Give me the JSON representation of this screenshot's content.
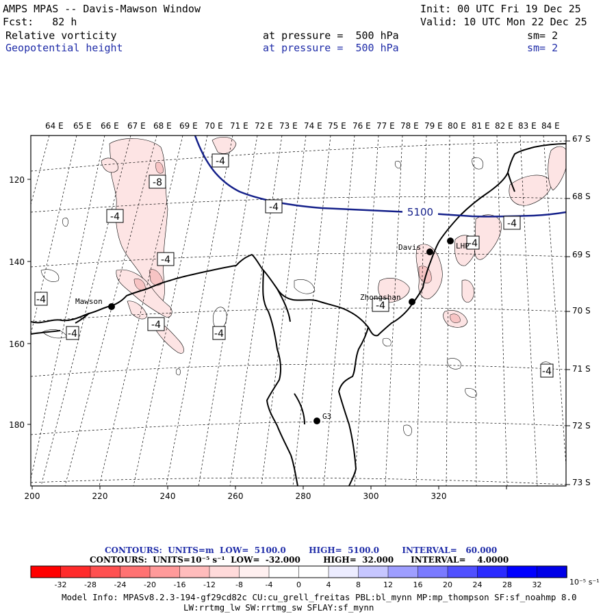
{
  "header": {
    "title": "AMPS MPAS -- Davis-Mawson Window",
    "init": "Init: 00 UTC Fri 19 Dec 25",
    "fcst": "Fcst:   82 h",
    "valid": "Valid: 10 UTC Mon 22 Dec 25",
    "field1": "Relative vorticity",
    "field1_level": "at pressure =  500 hPa",
    "field1_sm": "sm= 2",
    "field2": "Geopotential height",
    "field2_level": "at pressure =  500 hPa",
    "field2_sm": "sm= 2"
  },
  "map": {
    "top_lon_labels": [
      "64 E",
      "65 E",
      "66 E",
      "67 E",
      "68 E",
      "69 E",
      "70 E",
      "71 E",
      "72 E",
      "73 E",
      "74 E",
      "75 E",
      "76 E",
      "77 E",
      "78 E",
      "79 E",
      "80 E",
      "81 E",
      "82 E",
      "83 E",
      "84 E"
    ],
    "right_lat_labels": [
      "67 S",
      "68 S",
      "69 S",
      "70 S",
      "71 S",
      "72 S",
      "73 S"
    ],
    "left_y_ticks": [
      "120",
      "140",
      "160",
      "180"
    ],
    "bottom_x_ticks": [
      "200",
      "220",
      "240",
      "260",
      "280",
      "300",
      "320"
    ],
    "stations": [
      {
        "name": "Mawson"
      },
      {
        "name": "Davis"
      },
      {
        "name": "Zhongshan"
      },
      {
        "name": "G3"
      },
      {
        "name": "LHP"
      }
    ],
    "height_contour_label": "5100",
    "vorticity_labels": [
      "-4",
      "-8",
      "-4",
      "-4",
      "-4",
      "-4",
      "-4",
      "-4",
      "-4",
      "-4",
      "-4",
      "-4",
      "-4",
      "-4"
    ],
    "colors": {
      "coast": "#000000",
      "height_contour": "#14208a",
      "graticule": "#000000",
      "vort_fill_light": "#fde4e4",
      "vort_fill_mid": "#f7c4c4"
    }
  },
  "contour_info": {
    "line1": "CONTOURS:  UNITS=m  LOW=  5100.0        HIGH=  5100.0        INTERVAL=   60.000",
    "line2": "CONTOURS:  UNITS=10⁻⁵ s⁻¹  LOW=  -32.000        HIGH=  32.000      INTERVAL=    4.0000"
  },
  "colorbar": {
    "colors": [
      "#ff0000",
      "#ff2a2a",
      "#ff5050",
      "#ff7272",
      "#ff9a9a",
      "#ffbcbc",
      "#ffdada",
      "#fff0f0",
      "#ffffff",
      "#ffffff",
      "#ececff",
      "#c6c6ff",
      "#9e9eff",
      "#7a7aff",
      "#5050ff",
      "#2a2aff",
      "#0000ff",
      "#0000e8"
    ],
    "ticks": [
      "-32",
      "-28",
      "-24",
      "-20",
      "-16",
      "-12",
      "-8",
      "-4",
      "0",
      "4",
      "8",
      "12",
      "16",
      "20",
      "24",
      "28",
      "32"
    ],
    "units": "10⁻⁵ s⁻¹"
  },
  "model_info": {
    "line1": "Model Info: MPASv8.2.3-194-gf29cd82c CU:cu_grell_freitas PBL:bl_mynn MP:mp_thompson SF:sf_noahmp 8.0",
    "line2": "LW:rrtmg_lw SW:rrtmg_sw SFLAY:sf_mynn"
  }
}
